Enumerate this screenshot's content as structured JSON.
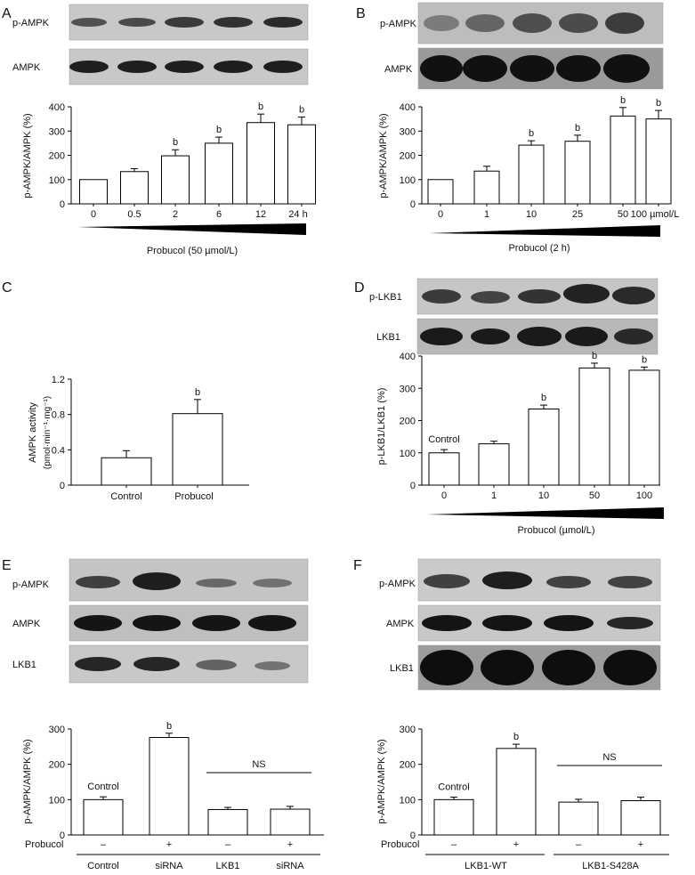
{
  "panels": {
    "A": {
      "letter": "A",
      "blot_labels": [
        "p-AMPK",
        "AMPK"
      ],
      "chart_data": {
        "type": "bar",
        "title": "",
        "ylabel": "p-AMPK/AMPK (%)",
        "ylim": [
          0,
          400
        ],
        "yticks": [
          "0",
          "100",
          "200",
          "300",
          "400"
        ],
        "categories": [
          "0",
          "0.5",
          "2",
          "6",
          "12",
          "24 h"
        ],
        "values": [
          100,
          133,
          198,
          250,
          335,
          326
        ],
        "errors": [
          0,
          12,
          25,
          25,
          35,
          32
        ],
        "annotations": [
          "",
          "",
          "b",
          "b",
          "b",
          "b"
        ],
        "xlabel": "Probucol (50 µmol/L)"
      }
    },
    "B": {
      "letter": "B",
      "blot_labels": [
        "p-AMPK",
        "AMPK"
      ],
      "chart_data": {
        "type": "bar",
        "title": "",
        "ylabel": "p-AMPK/AMPK (%)",
        "ylim": [
          0,
          400
        ],
        "yticks": [
          "0",
          "100",
          "200",
          "300",
          "400"
        ],
        "categories": [
          "0",
          "1",
          "10",
          "25",
          "50",
          "100 µmol/L"
        ],
        "values": [
          100,
          135,
          242,
          258,
          362,
          350
        ],
        "errors": [
          0,
          20,
          18,
          25,
          35,
          35
        ],
        "annotations": [
          "",
          "",
          "b",
          "b",
          "b",
          "b"
        ],
        "xlabel": "Probucol (2 h)"
      }
    },
    "C": {
      "letter": "C",
      "chart_data": {
        "type": "bar",
        "title": "",
        "ylabel_line1": "AMPK activity",
        "ylabel_line2": "(pmol·min⁻¹·mg⁻¹)",
        "ylim": [
          0,
          1.2
        ],
        "yticks": [
          "0",
          "0.4",
          "0.8",
          "1.2"
        ],
        "categories": [
          "Control",
          "Probucol"
        ],
        "values": [
          0.31,
          0.81
        ],
        "errors": [
          0.08,
          0.16
        ],
        "annotations": [
          "",
          "b"
        ]
      }
    },
    "D": {
      "letter": "D",
      "blot_labels": [
        "p-LKB1",
        "LKB1"
      ],
      "chart_data": {
        "type": "bar",
        "title": "",
        "ylabel": "p-LKB1/LKB1 (%)",
        "ylim": [
          0,
          400
        ],
        "yticks": [
          "0",
          "100",
          "200",
          "300",
          "400"
        ],
        "categories": [
          "0",
          "1",
          "10",
          "50",
          "100"
        ],
        "values": [
          100,
          128,
          236,
          363,
          356
        ],
        "errors": [
          10,
          8,
          12,
          15,
          10
        ],
        "annotations": [
          "",
          "",
          "b",
          "b",
          "b"
        ],
        "bar_label": "Control",
        "xlabel": "Probucol (µmol/L)"
      }
    },
    "E": {
      "letter": "E",
      "blot_labels": [
        "p-AMPK",
        "AMPK",
        "LKB1"
      ],
      "chart_data": {
        "type": "bar",
        "title": "",
        "ylabel": "p-AMPK/AMPK (%)",
        "ylim": [
          0,
          300
        ],
        "yticks": [
          "0",
          "100",
          "200",
          "300"
        ],
        "values": [
          100,
          276,
          72,
          73
        ],
        "errors": [
          8,
          12,
          6,
          8
        ],
        "annotations": [
          "",
          "b",
          "",
          ""
        ],
        "bar_label": "Control",
        "ns_label": "NS",
        "row_label": "Probucol",
        "signs": [
          "–",
          "+",
          "–",
          "+"
        ],
        "group_labels": [
          "Control",
          "siRNA",
          "LKB1",
          "siRNA"
        ]
      }
    },
    "F": {
      "letter": "F",
      "blot_labels": [
        "p-AMPK",
        "AMPK",
        "LKB1"
      ],
      "chart_data": {
        "type": "bar",
        "title": "",
        "ylabel": "p-AMPK/AMPK (%)",
        "ylim": [
          0,
          300
        ],
        "yticks": [
          "0",
          "100",
          "200",
          "300"
        ],
        "values": [
          100,
          245,
          93,
          97
        ],
        "errors": [
          7,
          12,
          8,
          10
        ],
        "annotations": [
          "",
          "b",
          "",
          ""
        ],
        "bar_label": "Control",
        "ns_label": "NS",
        "row_label": "Probucol",
        "signs": [
          "–",
          "+",
          "–",
          "+"
        ],
        "group_labels": [
          "LKB1-WT",
          "LKB1-S428A"
        ]
      }
    }
  }
}
